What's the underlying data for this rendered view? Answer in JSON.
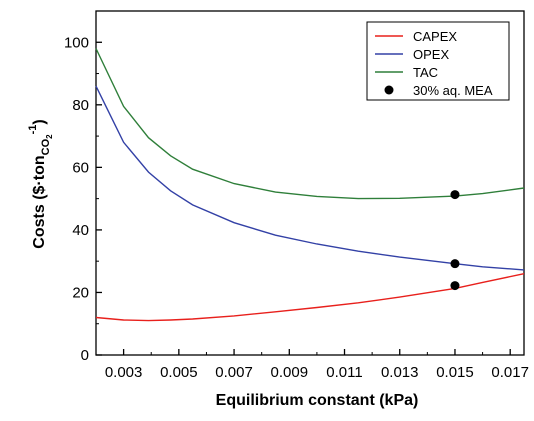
{
  "chart_data": {
    "type": "line",
    "xlabel": "Equilibrium constant (kPa)",
    "ylabel": {
      "main": "Costs ($·ton",
      "sub": "CO",
      "sub2": "2",
      "sup": "-1",
      "close": ")"
    },
    "xlim": [
      0.002,
      0.0175
    ],
    "ylim": [
      0,
      110
    ],
    "x_ticks": [
      0.003,
      0.005,
      0.007,
      0.009,
      0.011,
      0.013,
      0.015,
      0.017
    ],
    "x_tick_labels": [
      "0.003",
      "0.005",
      "0.007",
      "0.009",
      "0.011",
      "0.013",
      "0.015",
      "0.017"
    ],
    "y_ticks": [
      0,
      20,
      40,
      60,
      80,
      100
    ],
    "y_tick_labels": [
      "0",
      "20",
      "40",
      "60",
      "80",
      "100"
    ],
    "legend_position": "top-right",
    "series": [
      {
        "name": "CAPEX",
        "color": "#e8201c",
        "x": [
          0.002,
          0.003,
          0.0039,
          0.0047,
          0.0055,
          0.007,
          0.0085,
          0.01,
          0.0115,
          0.013,
          0.015,
          0.016,
          0.0175
        ],
        "y": [
          12,
          11.2,
          11,
          11.2,
          11.5,
          12.5,
          13.8,
          15.2,
          16.7,
          18.5,
          21.3,
          23.2,
          26
        ]
      },
      {
        "name": "OPEX",
        "color": "#3341a6",
        "x": [
          0.002,
          0.003,
          0.0039,
          0.0047,
          0.0055,
          0.007,
          0.0085,
          0.01,
          0.0115,
          0.013,
          0.015,
          0.016,
          0.0175
        ],
        "y": [
          86,
          68,
          58.5,
          52.5,
          48,
          42.3,
          38.3,
          35.5,
          33.2,
          31.3,
          29.2,
          28.2,
          27.2
        ]
      },
      {
        "name": "TAC",
        "color": "#2f7f3a",
        "x": [
          0.002,
          0.003,
          0.0039,
          0.0047,
          0.0055,
          0.007,
          0.0085,
          0.01,
          0.0115,
          0.013,
          0.015,
          0.016,
          0.0175
        ],
        "y": [
          98,
          79.5,
          69.5,
          63.7,
          59.4,
          54.8,
          52.1,
          50.7,
          50.0,
          50.1,
          50.8,
          51.6,
          53.4
        ]
      },
      {
        "name": "30% aq. MEA",
        "color": "#000000",
        "marker": "circle",
        "x": [
          0.015,
          0.015,
          0.015
        ],
        "y": [
          51.3,
          29.2,
          22.2
        ]
      }
    ]
  }
}
